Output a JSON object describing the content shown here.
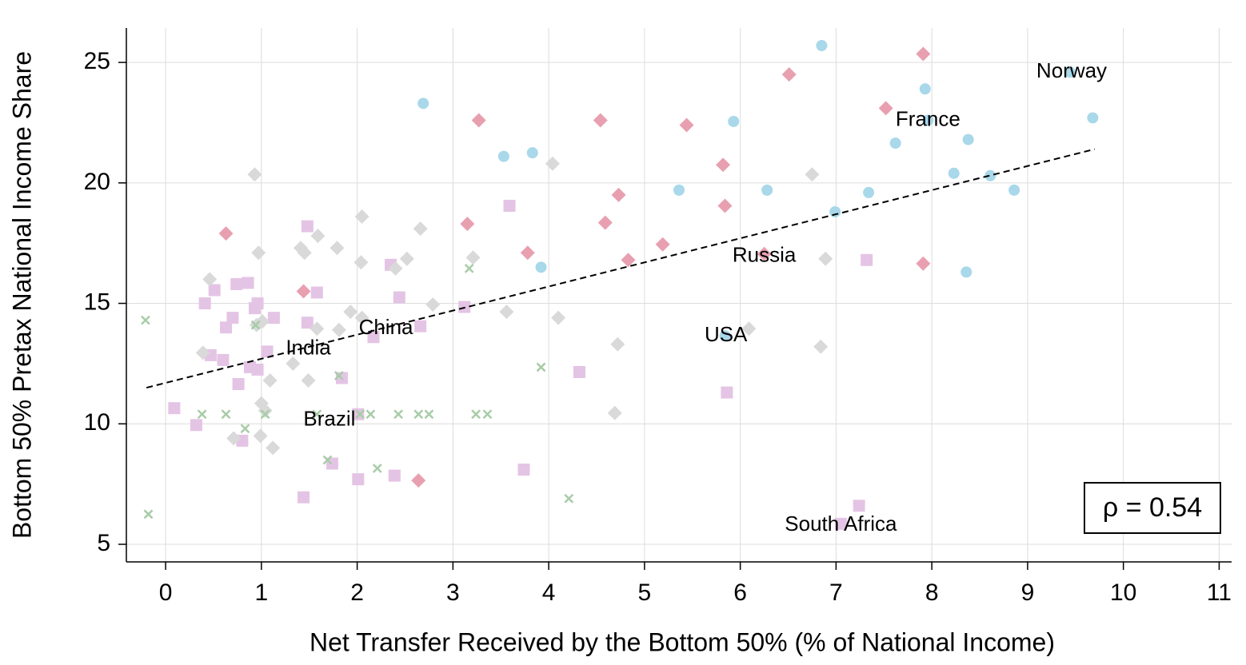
{
  "chart_data": {
    "type": "scatter",
    "x_label": "Net Transfer Received by the Bottom 50% (% of National Income)",
    "y_label": "Bottom 50% Pretax National Income Share",
    "xlim": [
      -0.41,
      11.13
    ],
    "ylim": [
      4.27,
      26.43
    ],
    "xticks": [
      0,
      1,
      2,
      3,
      4,
      5,
      6,
      7,
      8,
      9,
      10,
      11
    ],
    "yticks": [
      5,
      10,
      15,
      20,
      25
    ],
    "grid": true,
    "series": [
      {
        "color": "#a8d8ea",
        "marker": "circle",
        "x": [
          2.69,
          3.53,
          3.83,
          3.92,
          5.36,
          5.93,
          6.28,
          6.85,
          6.99,
          7.34,
          7.62,
          7.93,
          7.96,
          8.23,
          8.38,
          8.36,
          8.61,
          8.86,
          9.44,
          9.68,
          5.84
        ],
        "values": [
          23.3,
          21.1,
          21.25,
          16.5,
          19.7,
          22.55,
          19.7,
          25.7,
          18.8,
          19.6,
          21.65,
          23.9,
          22.6,
          20.4,
          21.8,
          16.3,
          20.3,
          19.7,
          24.6,
          22.7,
          13.65
        ]
      },
      {
        "color": "#e8a0b0",
        "marker": "diamond",
        "x": [
          0.63,
          1.44,
          2.64,
          3.15,
          3.27,
          3.78,
          4.54,
          4.59,
          4.73,
          4.83,
          5.19,
          5.44,
          5.82,
          5.84,
          6.25,
          6.51,
          7.52,
          7.91,
          7.91
        ],
        "values": [
          17.9,
          15.5,
          7.65,
          18.3,
          22.6,
          17.1,
          22.6,
          18.35,
          19.5,
          16.8,
          17.45,
          22.4,
          20.75,
          19.05,
          17.05,
          24.5,
          23.1,
          25.35,
          16.65
        ]
      },
      {
        "color": "#e4c4e4",
        "marker": "square",
        "x": [
          0.09,
          0.32,
          0.41,
          0.51,
          0.47,
          0.6,
          0.63,
          0.7,
          0.74,
          0.76,
          0.86,
          0.88,
          0.8,
          0.93,
          0.96,
          0.96,
          1.06,
          1.13,
          1.44,
          1.48,
          1.48,
          1.58,
          1.74,
          1.84,
          2.01,
          2.01,
          2.17,
          2.35,
          2.39,
          2.44,
          2.66,
          3.12,
          3.59,
          3.74,
          4.32,
          5.86,
          7.05,
          7.24,
          7.32
        ],
        "values": [
          10.65,
          9.95,
          15.0,
          15.55,
          12.85,
          12.65,
          14.0,
          14.4,
          15.8,
          11.65,
          15.85,
          12.35,
          9.3,
          14.8,
          15.0,
          12.25,
          13.0,
          14.4,
          6.95,
          18.2,
          14.2,
          15.45,
          8.35,
          11.9,
          7.7,
          10.4,
          13.6,
          16.6,
          7.85,
          15.25,
          14.05,
          14.85,
          19.05,
          8.1,
          12.15,
          11.3,
          5.85,
          6.6,
          16.8
        ]
      },
      {
        "color": "#d9d9d9",
        "marker": "diamond",
        "x": [
          0.39,
          0.46,
          0.71,
          0.93,
          0.97,
          0.95,
          1.0,
          1.01,
          0.99,
          1.04,
          1.09,
          1.12,
          1.33,
          1.41,
          1.45,
          1.49,
          1.59,
          1.58,
          1.79,
          1.81,
          1.93,
          2.04,
          2.05,
          2.05,
          2.4,
          2.52,
          2.66,
          2.79,
          3.21,
          3.56,
          4.04,
          4.1,
          4.72,
          4.69,
          6.09,
          6.75,
          6.89,
          6.84
        ],
        "values": [
          12.95,
          16.0,
          9.4,
          20.35,
          17.1,
          14.1,
          10.85,
          14.25,
          9.5,
          10.55,
          11.8,
          9.0,
          12.5,
          17.3,
          17.1,
          11.8,
          17.8,
          13.95,
          17.3,
          13.9,
          14.65,
          16.7,
          18.6,
          14.4,
          16.45,
          16.85,
          18.1,
          14.95,
          16.9,
          14.65,
          20.8,
          14.4,
          13.3,
          10.45,
          13.95,
          20.35,
          16.85,
          13.2
        ]
      },
      {
        "color": "#a8cca8",
        "marker": "x",
        "x": [
          -0.21,
          -0.18,
          0.38,
          0.63,
          0.83,
          0.94,
          1.04,
          1.58,
          1.69,
          1.81,
          2.03,
          2.14,
          2.21,
          2.43,
          2.64,
          2.75,
          3.17,
          3.24,
          3.36,
          3.92,
          4.21
        ],
        "values": [
          14.3,
          6.25,
          10.4,
          10.4,
          9.8,
          14.1,
          10.4,
          10.4,
          8.5,
          12.0,
          10.4,
          10.4,
          8.15,
          10.4,
          10.4,
          10.4,
          16.45,
          10.4,
          10.4,
          12.35,
          6.9
        ]
      }
    ],
    "trend_line": {
      "x": [
        -0.2,
        9.7
      ],
      "values": [
        11.5,
        21.4
      ]
    },
    "annotations": [
      {
        "text": "Norway",
        "x": 9.46,
        "y": 24.6
      },
      {
        "text": "France",
        "x": 7.96,
        "y": 22.6
      },
      {
        "text": "Russia",
        "x": 6.25,
        "y": 16.95
      },
      {
        "text": "USA",
        "x": 5.85,
        "y": 13.65
      },
      {
        "text": "China",
        "x": 2.3,
        "y": 13.95
      },
      {
        "text": "India",
        "x": 1.49,
        "y": 13.1
      },
      {
        "text": "Brazil",
        "x": 1.71,
        "y": 10.15
      },
      {
        "text": "South Africa",
        "x": 7.05,
        "y": 5.8
      }
    ],
    "stat_box": "ρ = 0.54"
  }
}
